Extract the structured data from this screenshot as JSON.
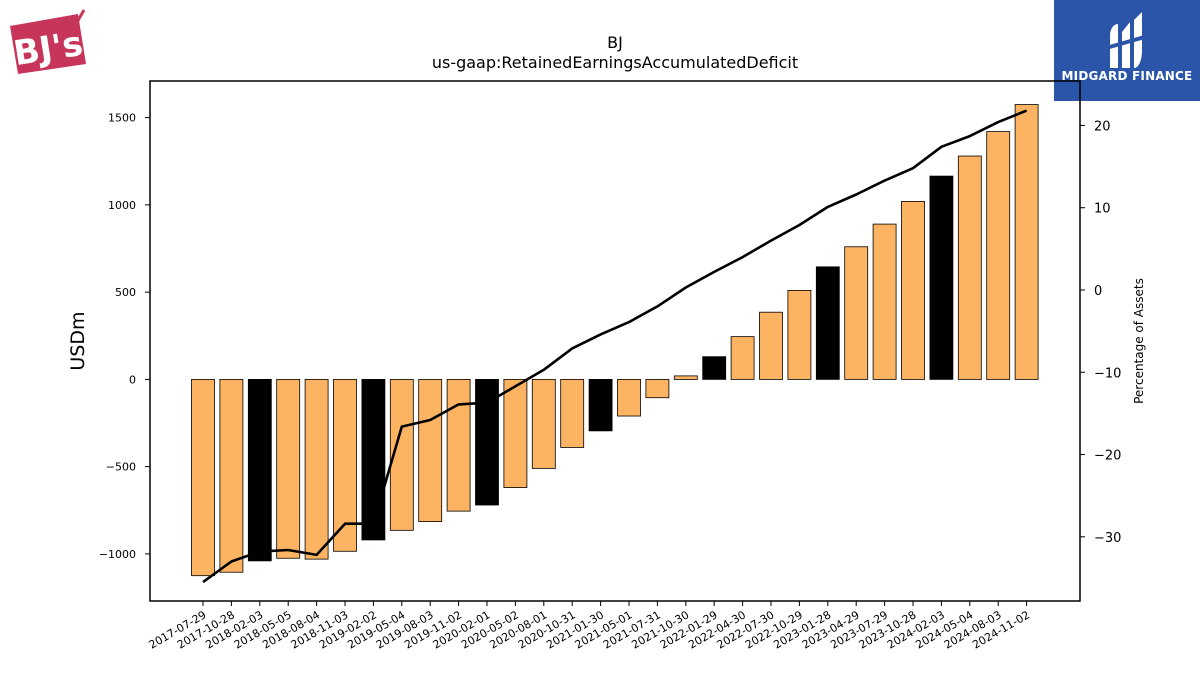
{
  "logos": {
    "company_text": "BJ's",
    "brand_name": "MIDGARD FINANCE"
  },
  "colors": {
    "bar_default": "#fdb462",
    "bar_highlight": "#000000",
    "line": "#000000",
    "brand_blue": "#2a55a9",
    "company_red": "#c7365a"
  },
  "chart_data": {
    "type": "bar",
    "title": "BJ",
    "subtitle": "us-gaap:RetainedEarningsAccumulatedDeficit",
    "xlabel": "",
    "ylabel": "USDm",
    "y2label": "Percentage of Assets",
    "ylim": [
      -1270,
      1710
    ],
    "y2lim": [
      -37.8,
      25.4
    ],
    "yticks": [
      -1000,
      -500,
      0,
      500,
      1000,
      1500
    ],
    "y2ticks": [
      -30,
      -20,
      -10,
      0,
      10,
      20
    ],
    "grid": false,
    "legend": "none",
    "categories": [
      "2017-07-29",
      "2017-10-28",
      "2018-02-03",
      "2018-05-05",
      "2018-08-04",
      "2018-11-03",
      "2019-02-02",
      "2019-05-04",
      "2019-08-03",
      "2019-11-02",
      "2020-02-01",
      "2020-05-02",
      "2020-08-01",
      "2020-10-31",
      "2021-01-30",
      "2021-05-01",
      "2021-07-31",
      "2021-10-30",
      "2022-01-29",
      "2022-04-30",
      "2022-07-30",
      "2022-10-29",
      "2023-01-28",
      "2023-04-29",
      "2023-07-29",
      "2023-10-28",
      "2024-02-03",
      "2024-05-04",
      "2024-08-03",
      "2024-11-02"
    ],
    "series": [
      {
        "type": "bar",
        "values": [
          -1125,
          -1105,
          -1040,
          -1025,
          -1030,
          -985,
          -920,
          -865,
          -815,
          -755,
          -720,
          -620,
          -510,
          -390,
          -295,
          -210,
          -105,
          20,
          130,
          245,
          385,
          510,
          645,
          760,
          890,
          1020,
          1165,
          1280,
          1420,
          1575
        ],
        "highlight": [
          false,
          false,
          true,
          false,
          false,
          false,
          true,
          false,
          false,
          false,
          true,
          false,
          false,
          false,
          true,
          false,
          false,
          false,
          true,
          false,
          false,
          false,
          true,
          false,
          false,
          false,
          true,
          false,
          false,
          false
        ]
      },
      {
        "type": "line",
        "axis": "right",
        "values": [
          -35.5,
          -33.0,
          -31.8,
          -31.6,
          -32.2,
          -28.4,
          -28.4,
          -16.6,
          -15.8,
          -13.9,
          -13.7,
          -11.7,
          -9.7,
          -7.1,
          -5.4,
          -3.9,
          -2.0,
          0.3,
          2.2,
          4.0,
          6.0,
          7.9,
          10.1,
          11.6,
          13.3,
          14.8,
          17.4,
          18.7,
          20.4,
          21.8
        ]
      }
    ]
  }
}
